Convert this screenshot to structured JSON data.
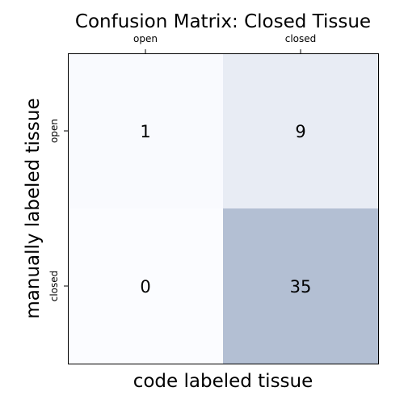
{
  "chart_data": {
    "type": "heatmap",
    "title": "Confusion Matrix: Closed Tissue",
    "xlabel": "code labeled tissue",
    "ylabel": "manually labeled tissue",
    "x_categories": [
      "open",
      "closed"
    ],
    "y_categories": [
      "open",
      "closed"
    ],
    "values": [
      [
        1,
        9
      ],
      [
        0,
        35
      ]
    ],
    "colormap": {
      "low": "#fbfcff",
      "high": "#b3bfd3"
    },
    "xtick_position": "top",
    "grid": false
  }
}
